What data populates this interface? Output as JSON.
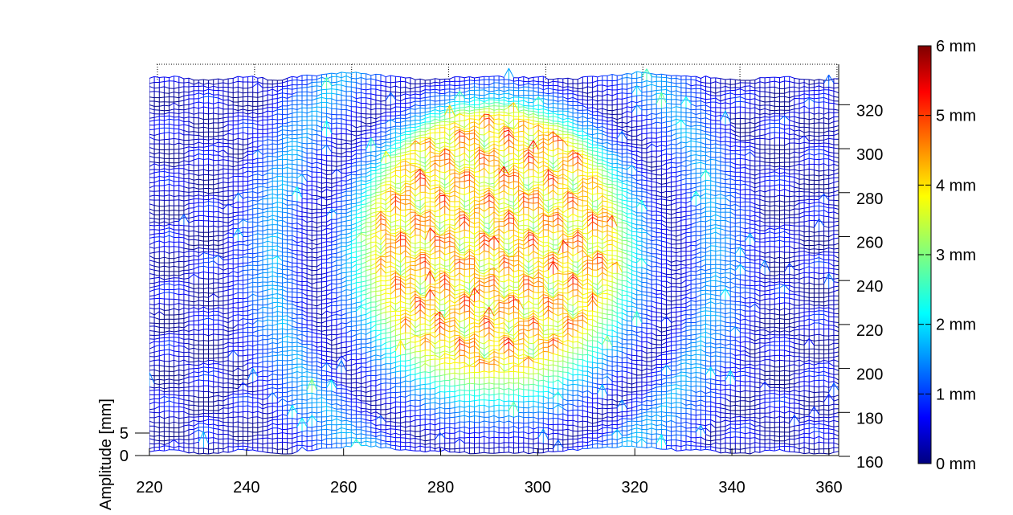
{
  "chart_data": {
    "type": "mesh3d",
    "x_axis": {
      "label": "",
      "ticks": [
        220,
        240,
        260,
        280,
        300,
        320,
        340,
        360
      ],
      "range": [
        220,
        362
      ]
    },
    "y_axis": {
      "label": "",
      "ticks": [
        160,
        180,
        200,
        220,
        240,
        260,
        280,
        300,
        320
      ],
      "range": [
        160,
        330
      ]
    },
    "z_axis": {
      "label": "Amplitude [mm]",
      "ticks": [
        0,
        5
      ],
      "range": [
        0,
        6
      ]
    },
    "colorbar": {
      "ticks": [
        "0 mm",
        "1 mm",
        "2 mm",
        "3 mm",
        "4 mm",
        "5 mm",
        "6 mm"
      ],
      "range": [
        0,
        6
      ],
      "colormap": "jet"
    },
    "surface_description_values": {
      "center_x": 291,
      "center_y": 248,
      "plateau_radius_x": 24,
      "plateau_radius_y": 57,
      "plateau_level_mm": 4.0,
      "peak_level_mm": 5.6,
      "ring_level_mm": 1.8,
      "background_level_mm": 0.4
    },
    "grid": true
  },
  "colors": {
    "jet": [
      "#00007f",
      "#0000ff",
      "#007fff",
      "#00ffff",
      "#7fff7f",
      "#ffff00",
      "#ff7f00",
      "#ff0000",
      "#7f0000"
    ],
    "axis": "#000000",
    "grid": "#000000"
  }
}
